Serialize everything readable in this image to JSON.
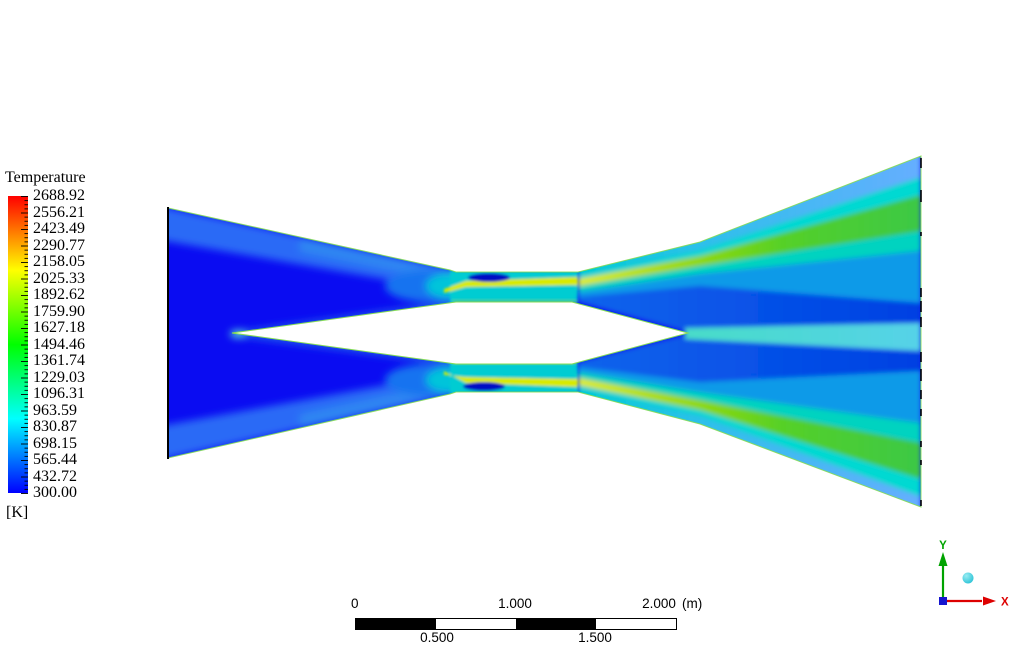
{
  "legend": {
    "title": "Temperature",
    "unit": "[K]",
    "values": [
      "2688.92",
      "2556.21",
      "2423.49",
      "2290.77",
      "2158.05",
      "2025.33",
      "1892.62",
      "1759.90",
      "1627.18",
      "1494.46",
      "1361.74",
      "1229.03",
      "1096.31",
      "963.59",
      "830.87",
      "698.15",
      "565.44",
      "432.72",
      "300.00"
    ],
    "colormap_top_to_bottom": [
      "#ff0000",
      "#ffff00",
      "#00ff00",
      "#00ffff",
      "#0000ff"
    ]
  },
  "scale_bar": {
    "top_labels": [
      "0",
      "1.000",
      "2.000"
    ],
    "unit": "(m)",
    "bottom_labels": [
      "0.500",
      "1.500"
    ],
    "segment_colors": [
      "#000000",
      "#ffffff",
      "#000000",
      "#ffffff"
    ]
  },
  "triad": {
    "x_label": "X",
    "y_label": "Y",
    "x_color": "#dd0000",
    "y_color": "#00a300",
    "origin_color": "#1515cf",
    "ball_color": "#2cc8d8"
  },
  "chart_data": {
    "type": "heatmap",
    "title": "Temperature",
    "unit": "K",
    "levels": [
      2688.92,
      2556.21,
      2423.49,
      2290.77,
      2158.05,
      2025.33,
      1892.62,
      1759.9,
      1627.18,
      1494.46,
      1361.74,
      1229.03,
      1096.31,
      963.59,
      830.87,
      698.15,
      565.44,
      432.72,
      300.0
    ],
    "range": [
      300.0,
      2688.92
    ],
    "colormap": "rainbow: blue(300K) -> cyan -> green -> yellow -> red(2688.92K)",
    "scale_bar_meters": {
      "start": 0,
      "end": 2.0,
      "labeled_ticks": [
        0,
        0.5,
        1.0,
        1.5,
        2.0
      ],
      "unit": "m"
    },
    "regions": [
      {
        "name": "inlet-chamber-core",
        "approx_temperature_K": "300-450",
        "color": "#0a0cf2"
      },
      {
        "name": "converging-wall-boundary-layer",
        "approx_temperature_K": "550-750",
        "color": "#2a6af6"
      },
      {
        "name": "throat-channel",
        "approx_temperature_K": "850-1000",
        "color": "#00ccd2"
      },
      {
        "name": "throat-hot-streak",
        "approx_temperature_K": "1900-2100",
        "color": "#d8ea00"
      },
      {
        "name": "throat-cold-spot",
        "approx_temperature_K": "300-400",
        "color": "#0007c4"
      },
      {
        "name": "jet-shear-layer-streak",
        "approx_temperature_K": "1400-1750",
        "color": "#3cc846"
      },
      {
        "name": "jet-outer-edge",
        "approx_temperature_K": "700-950",
        "color": "#55b0f8"
      },
      {
        "name": "jet-core",
        "approx_temperature_K": "500-650",
        "color": "#0346e6"
      },
      {
        "name": "centerbody-wake-line",
        "approx_temperature_K": "850-1000",
        "color": "#48d8cc"
      },
      {
        "name": "center-body",
        "approx_temperature_K": "no data (solid)",
        "color": "#ffffff"
      }
    ]
  }
}
